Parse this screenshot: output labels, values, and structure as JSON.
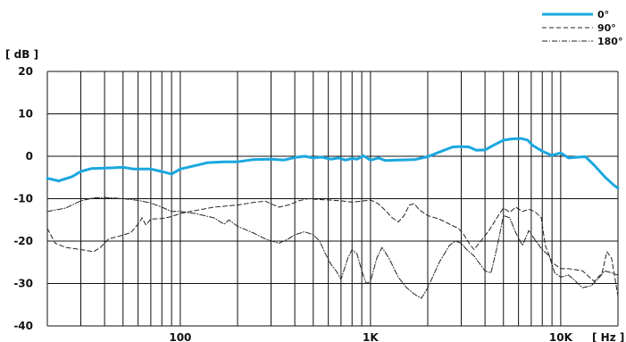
{
  "chart_data": {
    "type": "line",
    "x_scale": "log",
    "xlim": [
      20,
      20000
    ],
    "ylim": [
      -40,
      20
    ],
    "x_ticks": [
      {
        "value": 100,
        "label": "100"
      },
      {
        "value": 1000,
        "label": "1K"
      },
      {
        "value": 10000,
        "label": "10K"
      }
    ],
    "y_ticks": [
      {
        "value": 20,
        "label": "20"
      },
      {
        "value": 10,
        "label": "10"
      },
      {
        "value": 0,
        "label": "0"
      },
      {
        "value": -10,
        "label": "-10"
      },
      {
        "value": -20,
        "label": "-20"
      },
      {
        "value": -30,
        "label": "-30"
      },
      {
        "value": -40,
        "label": "-40"
      }
    ],
    "xlabel": "[ Hz ]",
    "ylabel": "[ dB ]",
    "grid": true,
    "legend_position": "top-right",
    "series": [
      {
        "name": "0°",
        "color": "#1aa7e0",
        "style": "solid",
        "points": [
          [
            20,
            -5.2
          ],
          [
            23,
            -5.8
          ],
          [
            27,
            -4.8
          ],
          [
            30,
            -3.6
          ],
          [
            34,
            -2.9
          ],
          [
            40,
            -2.8
          ],
          [
            50,
            -2.6
          ],
          [
            57,
            -3.0
          ],
          [
            70,
            -3.0
          ],
          [
            80,
            -3.6
          ],
          [
            90,
            -4.2
          ],
          [
            100,
            -3.0
          ],
          [
            120,
            -2.2
          ],
          [
            140,
            -1.5
          ],
          [
            170,
            -1.3
          ],
          [
            200,
            -1.3
          ],
          [
            240,
            -0.8
          ],
          [
            300,
            -0.7
          ],
          [
            350,
            -0.9
          ],
          [
            400,
            -0.3
          ],
          [
            450,
            0.0
          ],
          [
            500,
            -0.4
          ],
          [
            550,
            -0.2
          ],
          [
            620,
            -0.7
          ],
          [
            680,
            -0.4
          ],
          [
            740,
            -0.9
          ],
          [
            800,
            -0.5
          ],
          [
            850,
            -0.7
          ],
          [
            920,
            0.1
          ],
          [
            1000,
            -0.9
          ],
          [
            1100,
            -0.4
          ],
          [
            1200,
            -1.0
          ],
          [
            1400,
            -0.9
          ],
          [
            1700,
            -0.8
          ],
          [
            2000,
            -0.1
          ],
          [
            2300,
            1.0
          ],
          [
            2700,
            2.2
          ],
          [
            3000,
            2.3
          ],
          [
            3300,
            2.2
          ],
          [
            3600,
            1.4
          ],
          [
            4000,
            1.5
          ],
          [
            4400,
            2.5
          ],
          [
            5000,
            3.8
          ],
          [
            5600,
            4.1
          ],
          [
            6200,
            4.2
          ],
          [
            6700,
            3.8
          ],
          [
            7100,
            2.6
          ],
          [
            8000,
            1.2
          ],
          [
            9000,
            0.2
          ],
          [
            10000,
            0.8
          ],
          [
            11000,
            -0.4
          ],
          [
            12500,
            -0.2
          ],
          [
            13500,
            -0.1
          ],
          [
            15000,
            -2.1
          ],
          [
            17000,
            -4.8
          ],
          [
            19000,
            -6.8
          ],
          [
            20000,
            -7.5
          ]
        ]
      },
      {
        "name": "90°",
        "color": "#222222",
        "style": "dashed",
        "points": [
          [
            20,
            -17.0
          ],
          [
            22,
            -20.5
          ],
          [
            25,
            -21.5
          ],
          [
            30,
            -22.0
          ],
          [
            35,
            -22.5
          ],
          [
            38,
            -21.5
          ],
          [
            42,
            -19.5
          ],
          [
            48,
            -18.8
          ],
          [
            55,
            -18.0
          ],
          [
            60,
            -16.0
          ],
          [
            63,
            -14.5
          ],
          [
            66,
            -16.2
          ],
          [
            70,
            -14.8
          ],
          [
            80,
            -14.7
          ],
          [
            90,
            -14.2
          ],
          [
            100,
            -13.5
          ],
          [
            120,
            -12.8
          ],
          [
            150,
            -12.0
          ],
          [
            200,
            -11.5
          ],
          [
            250,
            -10.8
          ],
          [
            280,
            -10.6
          ],
          [
            300,
            -11.2
          ],
          [
            330,
            -12.0
          ],
          [
            370,
            -11.5
          ],
          [
            420,
            -10.5
          ],
          [
            470,
            -10.0
          ],
          [
            530,
            -10.2
          ],
          [
            600,
            -10.3
          ],
          [
            700,
            -10.5
          ],
          [
            800,
            -10.8
          ],
          [
            900,
            -10.6
          ],
          [
            1000,
            -10.3
          ],
          [
            1100,
            -11.2
          ],
          [
            1200,
            -12.8
          ],
          [
            1300,
            -14.5
          ],
          [
            1400,
            -15.5
          ],
          [
            1500,
            -14.0
          ],
          [
            1600,
            -11.5
          ],
          [
            1700,
            -11.2
          ],
          [
            1800,
            -12.6
          ],
          [
            2000,
            -14.0
          ],
          [
            2300,
            -14.8
          ],
          [
            2600,
            -16.0
          ],
          [
            2900,
            -17.0
          ],
          [
            3100,
            -18.5
          ],
          [
            3300,
            -20.5
          ],
          [
            3500,
            -22.0
          ],
          [
            3800,
            -20.0
          ],
          [
            4200,
            -17.5
          ],
          [
            4700,
            -14.0
          ],
          [
            5000,
            -12.2
          ],
          [
            5400,
            -13.2
          ],
          [
            5800,
            -12.0
          ],
          [
            6300,
            -13.0
          ],
          [
            6800,
            -12.5
          ],
          [
            7300,
            -13.0
          ],
          [
            7900,
            -14.5
          ],
          [
            8300,
            -21.0
          ],
          [
            9000,
            -25.0
          ],
          [
            10000,
            -26.5
          ],
          [
            11000,
            -26.5
          ],
          [
            13000,
            -27.0
          ],
          [
            15000,
            -29.5
          ],
          [
            16500,
            -27.5
          ],
          [
            17500,
            -22.5
          ],
          [
            18500,
            -24.0
          ],
          [
            20000,
            -33.0
          ]
        ]
      },
      {
        "name": "180°",
        "color": "#222222",
        "style": "dashdot",
        "points": [
          [
            20,
            -13.0
          ],
          [
            25,
            -12.2
          ],
          [
            30,
            -10.5
          ],
          [
            35,
            -9.8
          ],
          [
            40,
            -9.7
          ],
          [
            50,
            -10.0
          ],
          [
            60,
            -10.4
          ],
          [
            70,
            -11.0
          ],
          [
            80,
            -12.0
          ],
          [
            90,
            -13.0
          ],
          [
            100,
            -13.0
          ],
          [
            120,
            -13.5
          ],
          [
            150,
            -14.5
          ],
          [
            170,
            -16.0
          ],
          [
            180,
            -15.0
          ],
          [
            200,
            -16.5
          ],
          [
            240,
            -18.0
          ],
          [
            280,
            -19.5
          ],
          [
            330,
            -20.5
          ],
          [
            370,
            -19.5
          ],
          [
            400,
            -18.5
          ],
          [
            450,
            -17.8
          ],
          [
            500,
            -18.5
          ],
          [
            540,
            -20.0
          ],
          [
            580,
            -23.0
          ],
          [
            620,
            -25.5
          ],
          [
            660,
            -27.0
          ],
          [
            700,
            -29.0
          ],
          [
            760,
            -24.0
          ],
          [
            800,
            -22.0
          ],
          [
            850,
            -23.0
          ],
          [
            900,
            -27.0
          ],
          [
            950,
            -30.0
          ],
          [
            1000,
            -29.5
          ],
          [
            1080,
            -24.0
          ],
          [
            1150,
            -21.5
          ],
          [
            1250,
            -24.0
          ],
          [
            1400,
            -28.5
          ],
          [
            1550,
            -31.0
          ],
          [
            1700,
            -32.5
          ],
          [
            1850,
            -33.5
          ],
          [
            2000,
            -31.0
          ],
          [
            2300,
            -25.0
          ],
          [
            2600,
            -21.0
          ],
          [
            2800,
            -20.0
          ],
          [
            3000,
            -20.5
          ],
          [
            3200,
            -22.0
          ],
          [
            3500,
            -23.5
          ],
          [
            4000,
            -27.0
          ],
          [
            4300,
            -27.5
          ],
          [
            4600,
            -22.0
          ],
          [
            5000,
            -14.0
          ],
          [
            5400,
            -14.5
          ],
          [
            5800,
            -18.0
          ],
          [
            6300,
            -21.0
          ],
          [
            6800,
            -17.5
          ],
          [
            7400,
            -20.0
          ],
          [
            8000,
            -22.0
          ],
          [
            8700,
            -23.5
          ],
          [
            9300,
            -27.5
          ],
          [
            10000,
            -28.5
          ],
          [
            11000,
            -28.0
          ],
          [
            12000,
            -29.5
          ],
          [
            13000,
            -31.0
          ],
          [
            14500,
            -30.5
          ],
          [
            16000,
            -28.5
          ],
          [
            17000,
            -27.0
          ],
          [
            18500,
            -27.5
          ],
          [
            20000,
            -28.0
          ]
        ]
      }
    ]
  }
}
